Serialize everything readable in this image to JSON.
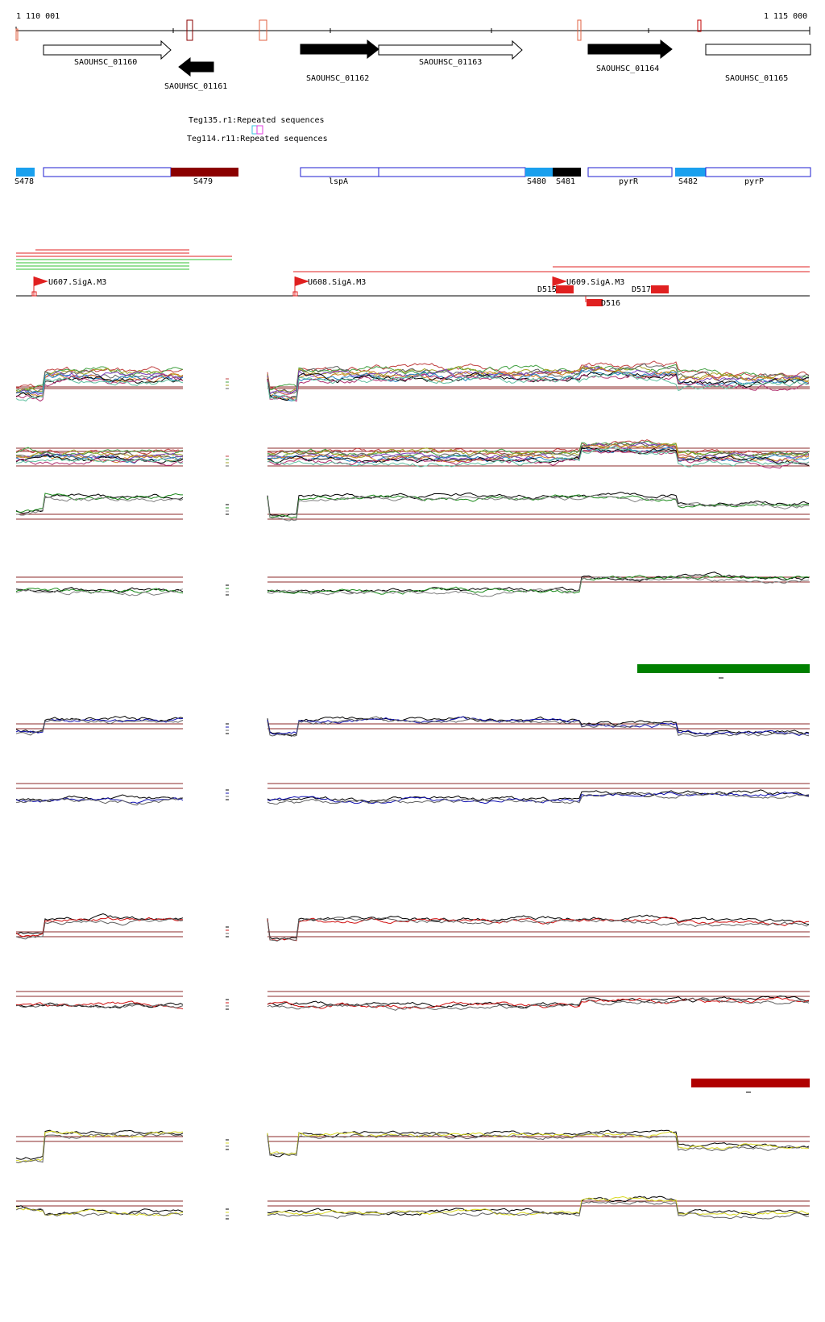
{
  "ruler": {
    "start_label": "1 110 001",
    "end_label": "1 115 000"
  },
  "genes": [
    {
      "label": "SAOUHSC_01160",
      "strand": "+",
      "style": "open"
    },
    {
      "label": "SAOUHSC_01161",
      "strand": "-",
      "style": "filled"
    },
    {
      "label": "SAOUHSC_01162",
      "strand": "+",
      "style": "filled"
    },
    {
      "label": "SAOUHSC_01163",
      "strand": "+",
      "style": "open"
    },
    {
      "label": "SAOUHSC_01164",
      "strand": "+",
      "style": "filled"
    },
    {
      "label": "SAOUHSC_01165",
      "strand": "+",
      "style": "open"
    }
  ],
  "repeats": [
    {
      "label": "Teg135.r1:Repeated sequences"
    },
    {
      "label": "Teg114.r11:Repeated sequences"
    }
  ],
  "segments": [
    {
      "label": "S478",
      "color": "#1aa0ee"
    },
    {
      "label": "S479",
      "color": "#8b0000"
    },
    {
      "label": "lspA",
      "color": "#1e1ed2"
    },
    {
      "label": "S480",
      "color": "#1aa0ee"
    },
    {
      "label": "S481",
      "color": "#000000"
    },
    {
      "label": "pyrR",
      "color": "#1e1ed2"
    },
    {
      "label": "S482",
      "color": "#1aa0ee"
    },
    {
      "label": "pyrP",
      "color": "#1e1ed2"
    }
  ],
  "promoters": [
    {
      "label": "U607.SigA.M3"
    },
    {
      "label": "U608.SigA.M3"
    },
    {
      "label": "U609.SigA.M3"
    }
  ],
  "downstream_features": [
    {
      "label": "D515"
    },
    {
      "label": "D516"
    },
    {
      "label": "D517"
    }
  ],
  "track_colors": {
    "green": "#1a8a1a",
    "blue": "#1010b0",
    "red": "#d01010",
    "yellow": "#d8d820",
    "threshold": "#8b2a2a",
    "green_bar": "#008000",
    "red_bar": "#b00000"
  }
}
